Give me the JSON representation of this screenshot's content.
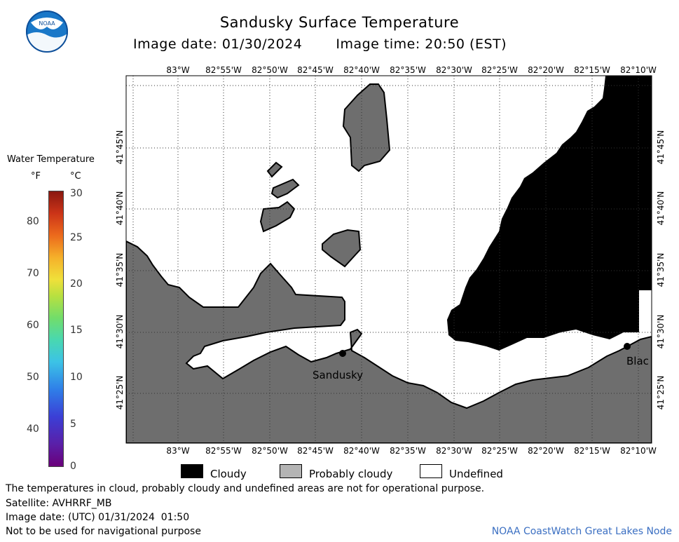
{
  "title": "Sandusky Surface Temperature",
  "image_date_label": "Image date: 01/30/2024",
  "image_time_label": "Image time: 20:50 (EST)",
  "legend": {
    "title": "Water Temperature",
    "unit_f": "°F",
    "unit_c": "°C",
    "fahrenheit_ticks": [
      "80",
      "70",
      "60",
      "50",
      "40"
    ],
    "celsius_ticks": [
      "30",
      "25",
      "20",
      "15",
      "10",
      "5",
      "0"
    ]
  },
  "map": {
    "lon_labels": [
      "83°W",
      "82°55'W",
      "82°50'W",
      "82°45'W",
      "82°40'W",
      "82°35'W",
      "82°30'W",
      "82°25'W",
      "82°20'W",
      "82°15'W",
      "82°10'W"
    ],
    "lat_labels": [
      "41°45'N",
      "41°40'N",
      "41°35'N",
      "41°30'N",
      "41°25'N"
    ],
    "place_labels": {
      "sandusky": "Sandusky",
      "blac": "Blac"
    },
    "colors": {
      "land": "#6e6e6e",
      "cloud": "#000000",
      "water_undefined": "#ffffff",
      "coast": "#000000"
    }
  },
  "key": {
    "cloudy": "Cloudy",
    "probably_cloudy": "Probably cloudy",
    "undefined": "Undefined",
    "colors": {
      "cloudy": "#000000",
      "probably_cloudy": "#b4b4b4",
      "undefined": "#ffffff"
    }
  },
  "notes": {
    "disclaimer": "The temperatures in cloud, probably cloudy and undefined areas are not for operational purpose.",
    "satellite": "Satellite: AVHRRF_MB",
    "utc_date": "Image date: (UTC) 01/31/2024  01:50",
    "navigation": "Not to be used for navigational purpose",
    "node": "NOAA CoastWatch Great Lakes Node"
  },
  "logo_text": "NOAA"
}
